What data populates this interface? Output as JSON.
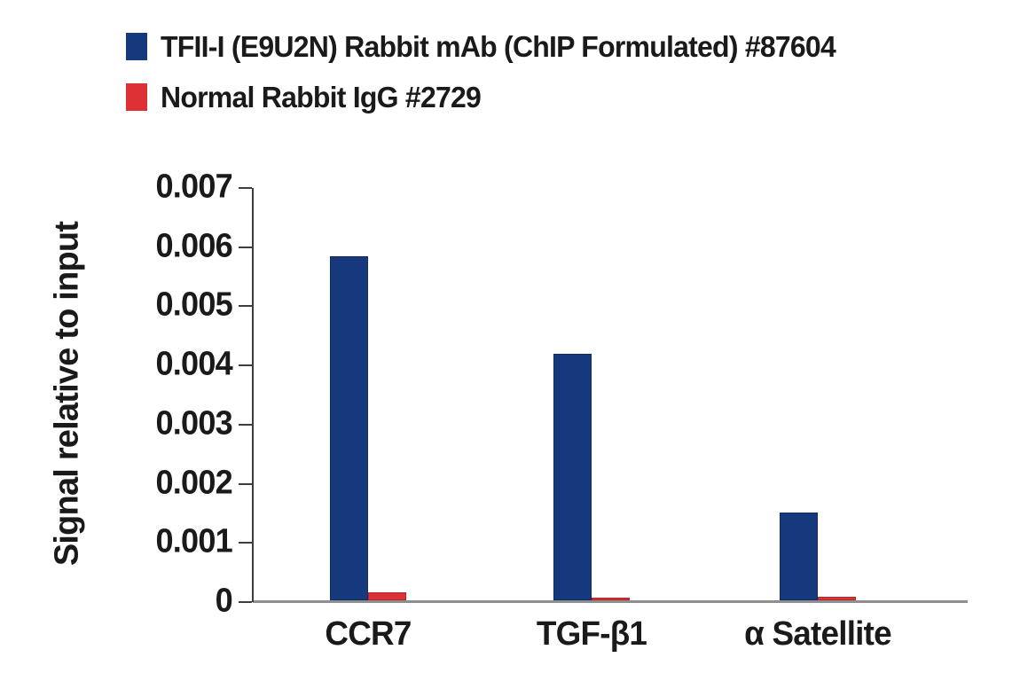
{
  "legend": {
    "items": [
      {
        "label": "TFII-I (E9U2N) Rabbit mAb (ChIP Formulated) #87604",
        "color": "#16397d",
        "swatch_icon": "blue-square-icon"
      },
      {
        "label": "Normal Rabbit IgG #2729",
        "color": "#de3136",
        "swatch_icon": "red-square-icon"
      }
    ]
  },
  "chart_data": {
    "type": "bar",
    "title": "",
    "xlabel": "",
    "ylabel": "Signal relative to input",
    "categories": [
      "CCR7",
      "TGF-β1",
      "α Satellite"
    ],
    "series": [
      {
        "name": "TFII-I (E9U2N) Rabbit mAb (ChIP Formulated) #87604",
        "color": "#16397d",
        "values": [
          0.00585,
          0.0042,
          0.00152
        ]
      },
      {
        "name": "Normal Rabbit IgG #2729",
        "color": "#de3136",
        "values": [
          0.00016,
          7e-05,
          9e-05
        ]
      }
    ],
    "ylim": [
      0,
      0.007
    ],
    "yticks": [
      0,
      0.001,
      0.002,
      0.003,
      0.004,
      0.005,
      0.006,
      0.007
    ],
    "ytick_labels": [
      "0",
      "0.001",
      "0.002",
      "0.003",
      "0.004",
      "0.005",
      "0.006",
      "0.007"
    ],
    "grid": false,
    "legend_position": "top-left",
    "axis_color": "#3d3d3d",
    "baseline_color": "#8f8f8f"
  }
}
